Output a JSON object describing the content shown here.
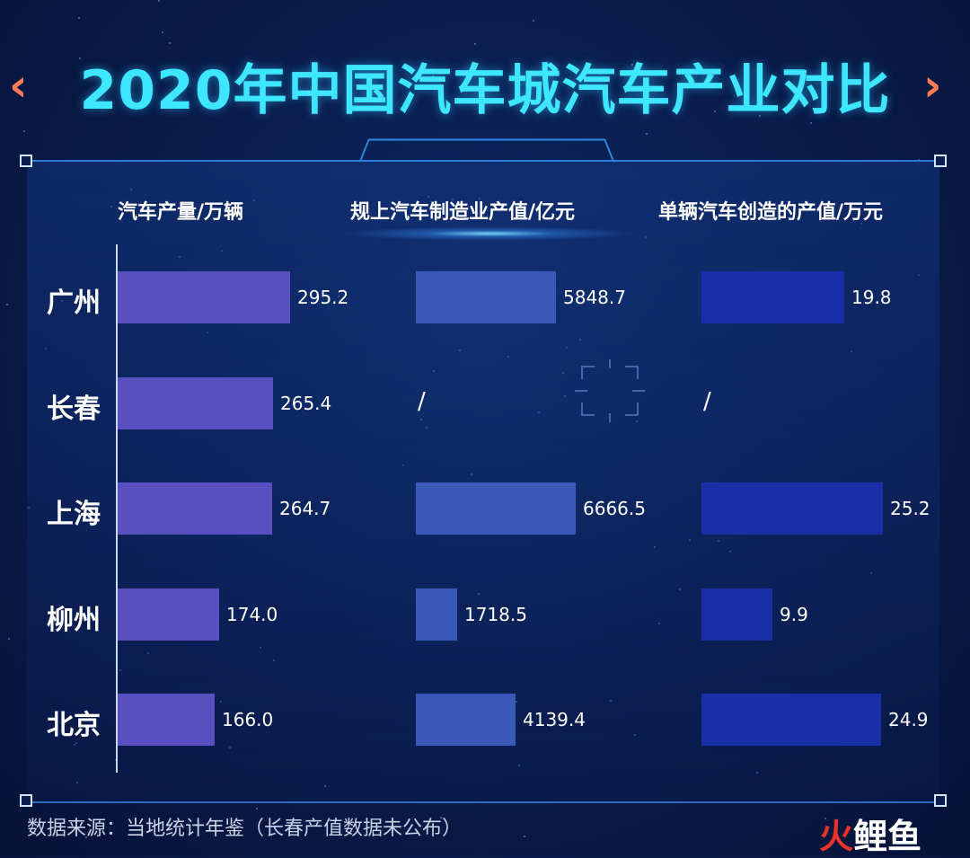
{
  "title": "2020年中国汽车城汽车产业对比",
  "decor": {
    "chevron_left": "‹",
    "chevron_right": "›"
  },
  "columns": [
    {
      "header": "汽车产量/万辆"
    },
    {
      "header": "规上汽车制造业产值/亿元"
    },
    {
      "header": "单辆汽车创造的产值/万元"
    }
  ],
  "chart_data": {
    "type": "bar",
    "orientation": "horizontal",
    "categories": [
      "广州",
      "长春",
      "上海",
      "柳州",
      "北京"
    ],
    "series": [
      {
        "name": "汽车产量/万辆",
        "values": [
          295.2,
          265.4,
          264.7,
          174.0,
          166.0
        ],
        "labels": [
          "295.2",
          "265.4",
          "264.7",
          "174.0",
          "166.0"
        ],
        "color": "#5a4fc0"
      },
      {
        "name": "规上汽车制造业产值/亿元",
        "values": [
          5848.7,
          null,
          6666.5,
          1718.5,
          4139.4
        ],
        "labels": [
          "5848.7",
          "/",
          "6666.5",
          "1718.5",
          "4139.4"
        ],
        "color": "#3a58b8"
      },
      {
        "name": "单辆汽车创造的产值/万元",
        "values": [
          19.8,
          null,
          25.2,
          9.9,
          24.9
        ],
        "labels": [
          "19.8",
          "/",
          "25.2",
          "9.9",
          "24.9"
        ],
        "color": "#1a2ea8"
      }
    ],
    "grid": false,
    "legend": "none"
  },
  "footer": {
    "source": "数据来源：当地统计年鉴（长春产值数据未公布）"
  },
  "watermark": {
    "part1": "火",
    "part2": "鲤鱼"
  },
  "colors": {
    "title": "#3ee6ff",
    "accent": "#ff7a55",
    "background": "#0a1d4e"
  }
}
